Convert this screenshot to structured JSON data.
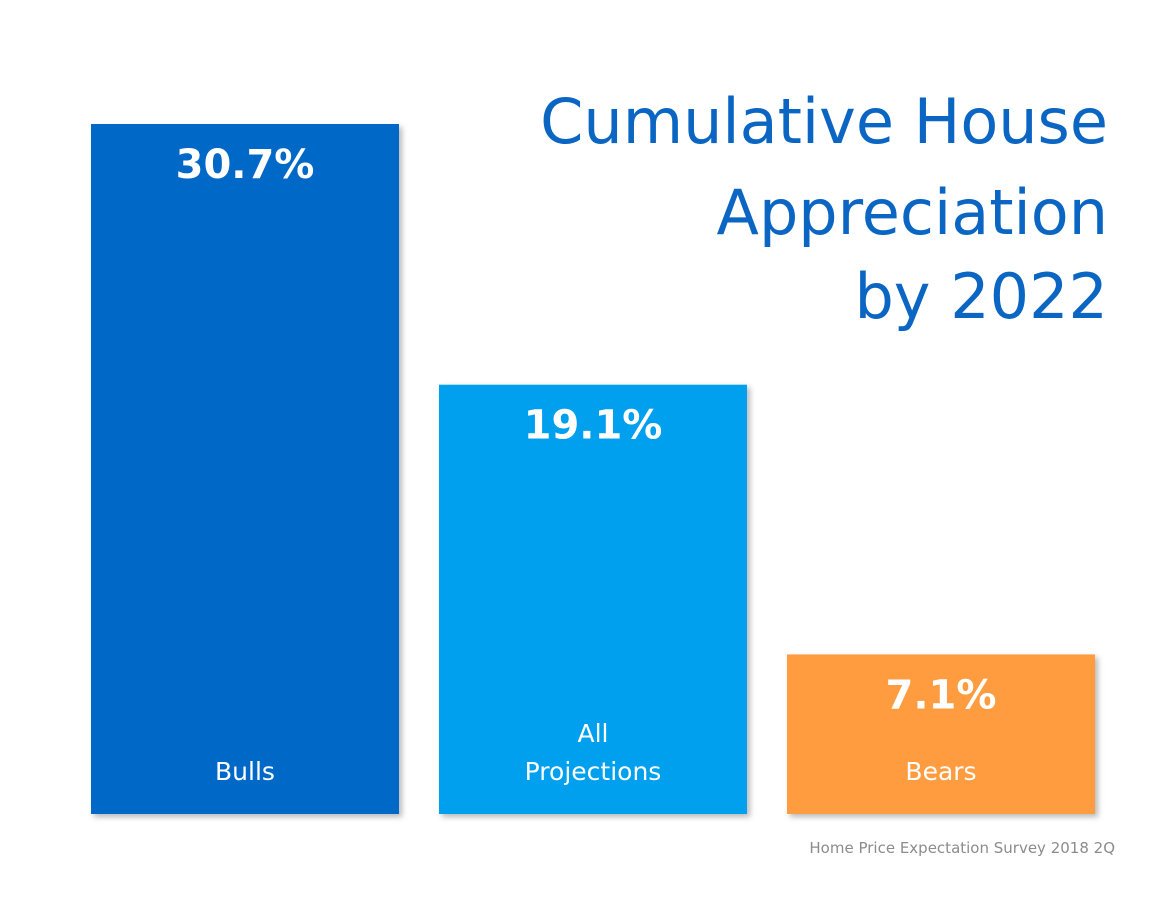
{
  "chart_data": {
    "type": "bar",
    "title": [
      "Cumulative House",
      "Appreciation",
      "by 2022"
    ],
    "xlabel": "",
    "ylabel": "",
    "grid": false,
    "ylim": [
      0,
      30.7
    ],
    "categories": [
      {
        "label": [
          "Bulls"
        ],
        "value": 30.7,
        "value_label": "30.7%",
        "color": "#0568c6"
      },
      {
        "label": [
          "All",
          "Projections"
        ],
        "value": 19.1,
        "value_label": "19.1%",
        "color": "#00a0ef"
      },
      {
        "label": [
          "Bears"
        ],
        "value": 7.1,
        "value_label": "7.1%",
        "color": "#ff9c41"
      }
    ],
    "source": "Home Price Expectation Survey 2018 2Q"
  },
  "colors": {
    "title": "#0a66c2",
    "source": "#8c8c8c",
    "background": "#ffffff"
  }
}
